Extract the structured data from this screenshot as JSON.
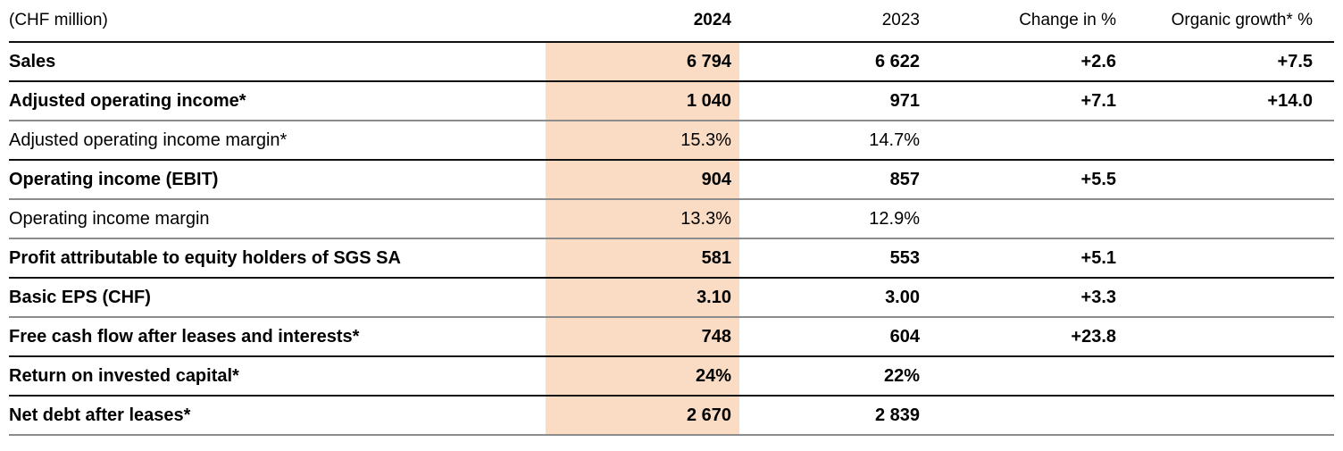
{
  "colors": {
    "highlight": "#f9dcc3",
    "rule_dark": "#111111",
    "rule_gray": "#8c8c8c"
  },
  "header": {
    "unit": "(CHF million)",
    "col_2024": "2024",
    "col_2023": "2023",
    "col_change": "Change in %",
    "col_organic": "Organic growth* %"
  },
  "rows": [
    {
      "label": "Sales",
      "y2024": "6 794",
      "y2023": "6 622",
      "change": "+2.6",
      "organic": "+7.5"
    },
    {
      "label": "Adjusted operating income*",
      "y2024": "1 040",
      "y2023": "971",
      "change": "+7.1",
      "organic": "+14.0"
    },
    {
      "label": "Adjusted operating income margin*",
      "y2024": "15.3%",
      "y2023": "14.7%",
      "change": "",
      "organic": ""
    },
    {
      "label": "Operating income (EBIT)",
      "y2024": "904",
      "y2023": "857",
      "change": "+5.5",
      "organic": ""
    },
    {
      "label": "Operating income margin",
      "y2024": "13.3%",
      "y2023": "12.9%",
      "change": "",
      "organic": ""
    },
    {
      "label": "Profit attributable to equity holders of SGS SA",
      "y2024": "581",
      "y2023": "553",
      "change": "+5.1",
      "organic": ""
    },
    {
      "label": "Basic EPS (CHF)",
      "y2024": "3.10",
      "y2023": "3.00",
      "change": "+3.3",
      "organic": ""
    },
    {
      "label": "Free cash flow after leases and interests*",
      "y2024": "748",
      "y2023": "604",
      "change": "+23.8",
      "organic": ""
    },
    {
      "label": "Return on invested capital*",
      "y2024": "24%",
      "y2023": "22%",
      "change": "",
      "organic": ""
    },
    {
      "label": "Net debt after leases*",
      "y2024": "2 670",
      "y2023": "2 839",
      "change": "",
      "organic": ""
    }
  ]
}
